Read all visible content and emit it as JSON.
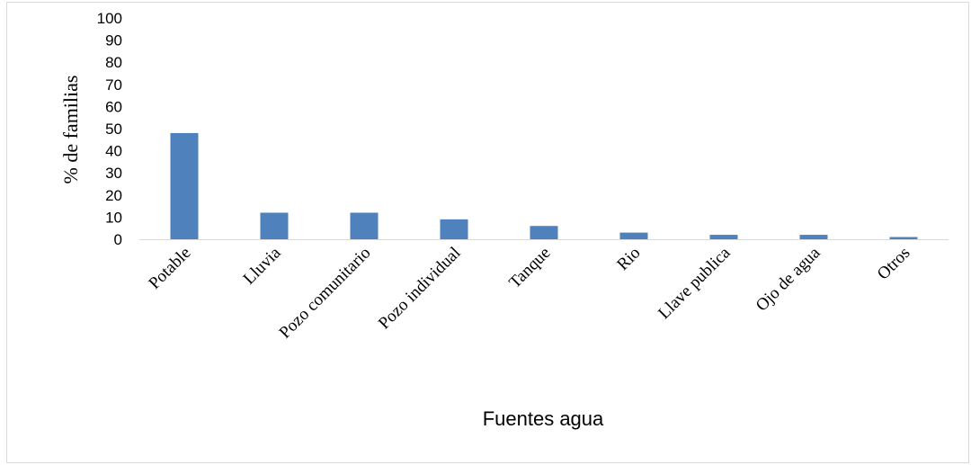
{
  "chart_data": {
    "type": "bar",
    "categories": [
      "Potable",
      "Lluvia",
      "Pozo comunitario",
      "Pozo individual",
      "Tanque",
      "Rio",
      "Llave publica",
      "Ojo de agua",
      "Otros"
    ],
    "values": [
      48,
      12,
      12,
      9,
      6,
      3,
      2,
      2,
      1
    ],
    "title": "",
    "xlabel": "Fuentes agua",
    "ylabel": "% de familias",
    "ylim": [
      0,
      100
    ],
    "yticks": [
      "0",
      "10",
      "20",
      "30",
      "40",
      "50",
      "60",
      "70",
      "80",
      "90",
      "100"
    ],
    "grid": false,
    "legend": "none",
    "bar_color": "#4f81bd",
    "axis_color": "#d9d9d9"
  }
}
